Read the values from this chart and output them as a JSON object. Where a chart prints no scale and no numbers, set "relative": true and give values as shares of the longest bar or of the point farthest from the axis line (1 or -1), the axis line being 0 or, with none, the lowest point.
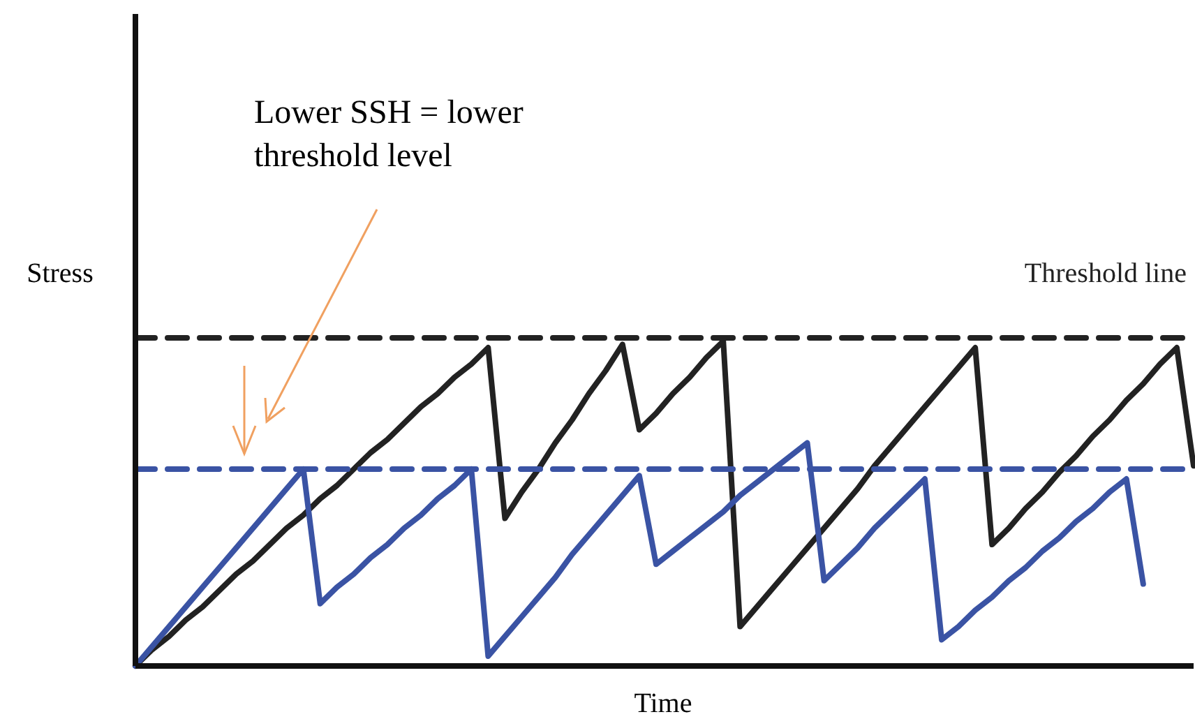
{
  "chart_data": {
    "type": "line",
    "relative": true,
    "xlabel": "Time",
    "ylabel": "Stress",
    "categories": [
      null,
      null,
      null,
      null,
      null,
      null,
      null,
      null,
      null,
      null,
      null,
      null,
      null,
      null,
      null,
      null,
      null,
      null,
      null,
      null,
      null,
      null,
      null,
      null,
      null,
      null,
      null,
      null,
      null,
      null,
      null,
      null,
      null,
      null,
      null,
      null,
      null,
      null,
      null,
      null,
      null,
      null,
      null,
      null,
      null,
      null,
      null,
      null,
      null,
      null,
      null,
      null,
      null,
      null,
      null,
      null,
      null,
      null,
      null,
      null,
      null,
      null,
      null,
      null
    ],
    "series": [
      {
        "color": "#222222",
        "line_style": "solid",
        "values": [
          0,
          0.05,
          0.09,
          0.14,
          0.18,
          0.23,
          0.28,
          0.32,
          0.37,
          0.42,
          0.46,
          0.51,
          0.55,
          0.6,
          0.65,
          0.69,
          0.74,
          0.79,
          0.83,
          0.88,
          0.92,
          0.97,
          0.45,
          0.53,
          0.6,
          0.68,
          0.75,
          0.83,
          0.9,
          0.98,
          0.72,
          0.77,
          0.83,
          0.88,
          0.94,
          0.99,
          0.12,
          0.18,
          0.24,
          0.3,
          0.36,
          0.42,
          0.48,
          0.54,
          0.61,
          0.67,
          0.73,
          0.79,
          0.85,
          0.91,
          0.97,
          0.37,
          0.42,
          0.48,
          0.53,
          0.59,
          0.64,
          0.7,
          0.75,
          0.81,
          0.86,
          0.92,
          0.97,
          0.61
        ]
      },
      {
        "color": "#3a53a4",
        "line_style": "solid",
        "values": [
          0,
          0.06,
          0.12,
          0.18,
          0.24,
          0.3,
          0.36,
          0.42,
          0.48,
          0.54,
          0.6,
          0.19,
          0.24,
          0.28,
          0.33,
          0.37,
          0.42,
          0.46,
          0.51,
          0.55,
          0.6,
          0.03,
          0.09,
          0.15,
          0.21,
          0.27,
          0.34,
          0.4,
          0.46,
          0.52,
          0.58,
          0.31,
          0.35,
          0.39,
          0.43,
          0.47,
          0.52,
          0.56,
          0.6,
          0.64,
          0.68,
          0.26,
          0.31,
          0.36,
          0.42,
          0.47,
          0.52,
          0.57,
          0.08,
          0.12,
          0.17,
          0.21,
          0.26,
          0.3,
          0.35,
          0.39,
          0.44,
          0.48,
          0.53,
          0.57,
          0.25,
          null,
          null,
          null
        ]
      },
      {
        "name": "Threshold line",
        "color": "#222222",
        "line_style": "dashed",
        "values": [
          1,
          1,
          1,
          1,
          1,
          1,
          1,
          1,
          1,
          1,
          1,
          1,
          1,
          1,
          1,
          1,
          1,
          1,
          1,
          1,
          1,
          1,
          1,
          1,
          1,
          1,
          1,
          1,
          1,
          1,
          1,
          1,
          1,
          1,
          1,
          1,
          1,
          1,
          1,
          1,
          1,
          1,
          1,
          1,
          1,
          1,
          1,
          1,
          1,
          1,
          1,
          1,
          1,
          1,
          1,
          1,
          1,
          1,
          1,
          1,
          1,
          1,
          1,
          1
        ]
      },
      {
        "color": "#3a53a4",
        "line_style": "dashed",
        "values": [
          0.6,
          0.6,
          0.6,
          0.6,
          0.6,
          0.6,
          0.6,
          0.6,
          0.6,
          0.6,
          0.6,
          0.6,
          0.6,
          0.6,
          0.6,
          0.6,
          0.6,
          0.6,
          0.6,
          0.6,
          0.6,
          0.6,
          0.6,
          0.6,
          0.6,
          0.6,
          0.6,
          0.6,
          0.6,
          0.6,
          0.6,
          0.6,
          0.6,
          0.6,
          0.6,
          0.6,
          0.6,
          0.6,
          0.6,
          0.6,
          0.6,
          0.6,
          0.6,
          0.6,
          0.6,
          0.6,
          0.6,
          0.6,
          0.6,
          0.6,
          0.6,
          0.6,
          0.6,
          0.6,
          0.6,
          0.6,
          0.6,
          0.6,
          0.6,
          0.6,
          0.6,
          0.6,
          0.6,
          0.6
        ]
      }
    ],
    "annotations": [
      "Lower SSH = lower threshold level"
    ]
  }
}
